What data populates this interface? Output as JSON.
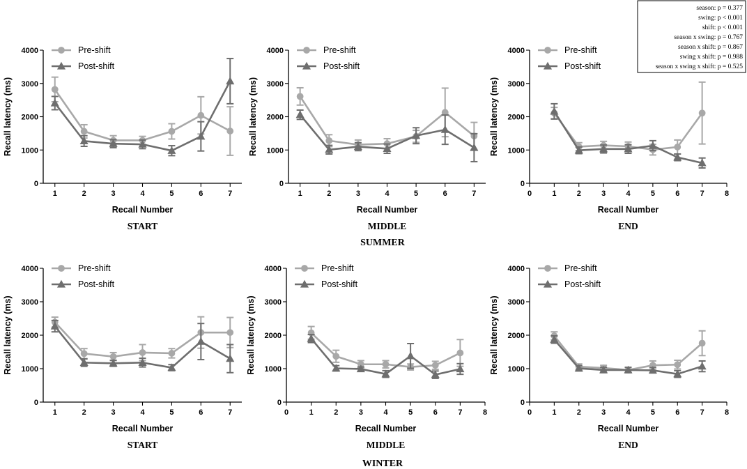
{
  "stats_box": {
    "lines": [
      "season: p = 0.377",
      "swing: p < 0.001",
      "shift: p < 0.001",
      "season x swing: p = 0.767",
      "season x shift: p = 0.867",
      "swing x shift: p = 0.988",
      "season x swing x shift: p = 0.525"
    ]
  },
  "season_labels": [
    "SUMMER",
    "WINTER"
  ],
  "colors": {
    "pre": "#a8a8a8",
    "post": "#6e6e6e",
    "axis": "#000000"
  },
  "chart_data": [
    {
      "type": "line",
      "season": "SUMMER",
      "panel_label": "START",
      "xlabel": "Recall Number",
      "ylabel": "Recall latency (ms)",
      "xlim": [
        0.6,
        7.4
      ],
      "xticks": [
        1,
        2,
        3,
        4,
        5,
        6,
        7
      ],
      "ylim": [
        0,
        4000
      ],
      "yticks": [
        0,
        1000,
        2000,
        3000,
        4000
      ],
      "legend": [
        "Pre-shift",
        "Post-shift"
      ],
      "series": [
        {
          "name": "Pre-shift",
          "marker": "circle",
          "x": [
            1,
            2,
            3,
            4,
            5,
            6,
            7
          ],
          "y": [
            2820,
            1560,
            1290,
            1290,
            1560,
            2040,
            1570
          ],
          "err": [
            370,
            200,
            140,
            120,
            230,
            560,
            730
          ]
        },
        {
          "name": "Post-shift",
          "marker": "triangle",
          "x": [
            1,
            2,
            3,
            4,
            5,
            6,
            7
          ],
          "y": [
            2410,
            1270,
            1190,
            1170,
            980,
            1410,
            3070
          ],
          "err": [
            200,
            160,
            120,
            130,
            150,
            440,
            680
          ]
        }
      ]
    },
    {
      "type": "line",
      "season": "SUMMER",
      "panel_label": "MIDDLE",
      "xlabel": "Recall Number",
      "ylabel": "Recall latency (ms)",
      "xlim": [
        0.6,
        7.4
      ],
      "xticks": [
        1,
        2,
        3,
        4,
        5,
        6,
        7
      ],
      "ylim": [
        0,
        4000
      ],
      "yticks": [
        0,
        1000,
        2000,
        3000,
        4000
      ],
      "legend": [
        "Pre-shift",
        "Post-shift"
      ],
      "series": [
        {
          "name": "Pre-shift",
          "marker": "circle",
          "x": [
            1,
            2,
            3,
            4,
            5,
            6,
            7
          ],
          "y": [
            2610,
            1280,
            1160,
            1190,
            1410,
            2130,
            1420
          ],
          "err": [
            260,
            180,
            140,
            150,
            180,
            730,
            410
          ]
        },
        {
          "name": "Post-shift",
          "marker": "triangle",
          "x": [
            1,
            2,
            3,
            4,
            5,
            6,
            7
          ],
          "y": [
            2060,
            1010,
            1100,
            1040,
            1430,
            1610,
            1070
          ],
          "err": [
            140,
            130,
            120,
            140,
            240,
            440,
            420
          ]
        }
      ]
    },
    {
      "type": "line",
      "season": "SUMMER",
      "panel_label": "END",
      "xlabel": "Recall Number",
      "ylabel": "Recall latency (ms)",
      "xlim": [
        0,
        8
      ],
      "xticks": [
        0,
        1,
        2,
        3,
        4,
        5,
        6,
        7,
        8
      ],
      "ylim": [
        0,
        4000
      ],
      "yticks": [
        0,
        1000,
        2000,
        3000,
        4000
      ],
      "legend": [
        "Pre-shift",
        "Post-shift"
      ],
      "series": [
        {
          "name": "Pre-shift",
          "marker": "circle",
          "x": [
            1,
            2,
            3,
            4,
            5,
            6,
            7
          ],
          "y": [
            2110,
            1100,
            1140,
            1110,
            1010,
            1090,
            2110
          ],
          "err": [
            170,
            120,
            120,
            130,
            160,
            210,
            930
          ]
        },
        {
          "name": "Post-shift",
          "marker": "triangle",
          "x": [
            1,
            2,
            3,
            4,
            5,
            6,
            7
          ],
          "y": [
            2160,
            990,
            1030,
            1030,
            1130,
            780,
            610
          ],
          "err": [
            230,
            100,
            120,
            130,
            150,
            100,
            150
          ]
        }
      ]
    },
    {
      "type": "line",
      "season": "WINTER",
      "panel_label": "START",
      "xlabel": "Recall Number",
      "ylabel": "Recall latency (ms)",
      "xlim": [
        0.6,
        7.4
      ],
      "xticks": [
        1,
        2,
        3,
        4,
        5,
        6,
        7
      ],
      "ylim": [
        0,
        4000
      ],
      "yticks": [
        0,
        1000,
        2000,
        3000,
        4000
      ],
      "legend": [
        "Pre-shift",
        "Post-shift"
      ],
      "series": [
        {
          "name": "Pre-shift",
          "marker": "circle",
          "x": [
            1,
            2,
            3,
            4,
            5,
            6,
            7
          ],
          "y": [
            2390,
            1450,
            1360,
            1480,
            1460,
            2080,
            2080
          ],
          "err": [
            150,
            150,
            120,
            240,
            140,
            470,
            450
          ]
        },
        {
          "name": "Post-shift",
          "marker": "triangle",
          "x": [
            1,
            2,
            3,
            4,
            5,
            6,
            7
          ],
          "y": [
            2270,
            1180,
            1160,
            1180,
            1030,
            1810,
            1300
          ],
          "err": [
            170,
            110,
            90,
            130,
            90,
            540,
            420
          ]
        }
      ]
    },
    {
      "type": "line",
      "season": "WINTER",
      "panel_label": "MIDDLE",
      "xlabel": "Recall Number",
      "ylabel": "Recall latency (ms)",
      "xlim": [
        0,
        8
      ],
      "xticks": [
        0,
        1,
        2,
        3,
        4,
        5,
        6,
        7,
        8
      ],
      "ylim": [
        0,
        4000
      ],
      "yticks": [
        0,
        1000,
        2000,
        3000,
        4000
      ],
      "legend": [
        "Pre-shift",
        "Post-shift"
      ],
      "series": [
        {
          "name": "Pre-shift",
          "marker": "circle",
          "x": [
            1,
            2,
            3,
            4,
            5,
            6,
            7
          ],
          "y": [
            2070,
            1370,
            1130,
            1130,
            1050,
            1100,
            1470
          ],
          "err": [
            190,
            180,
            110,
            110,
            90,
            120,
            400
          ]
        },
        {
          "name": "Post-shift",
          "marker": "triangle",
          "x": [
            1,
            2,
            3,
            4,
            5,
            6,
            7
          ],
          "y": [
            1900,
            1010,
            990,
            840,
            1380,
            820,
            990
          ],
          "err": [
            120,
            80,
            60,
            100,
            370,
            110,
            160
          ]
        }
      ]
    },
    {
      "type": "line",
      "season": "WINTER",
      "panel_label": "END",
      "xlabel": "Recall Number",
      "ylabel": "Recall latency (ms)",
      "xlim": [
        0,
        8
      ],
      "xticks": [
        0,
        1,
        2,
        3,
        4,
        5,
        6,
        7,
        8
      ],
      "ylim": [
        0,
        4000
      ],
      "yticks": [
        0,
        1000,
        2000,
        3000,
        4000
      ],
      "legend": [
        "Pre-shift",
        "Post-shift"
      ],
      "series": [
        {
          "name": "Pre-shift",
          "marker": "circle",
          "x": [
            1,
            2,
            3,
            4,
            5,
            6,
            7
          ],
          "y": [
            1980,
            1060,
            1020,
            960,
            1100,
            1120,
            1760
          ],
          "err": [
            120,
            80,
            80,
            80,
            130,
            130,
            370
          ]
        },
        {
          "name": "Post-shift",
          "marker": "triangle",
          "x": [
            1,
            2,
            3,
            4,
            5,
            6,
            7
          ],
          "y": [
            1870,
            1010,
            960,
            960,
            950,
            840,
            1070
          ],
          "err": [
            110,
            80,
            80,
            80,
            80,
            100,
            160
          ]
        }
      ]
    }
  ]
}
